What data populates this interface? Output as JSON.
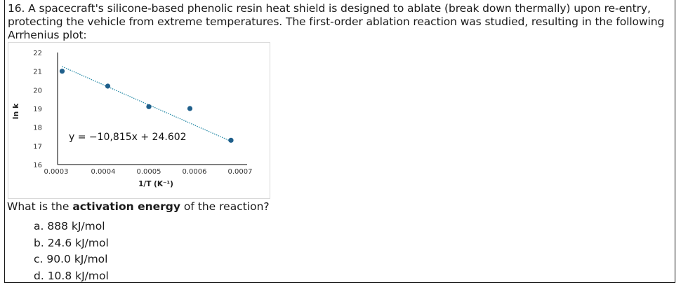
{
  "question": {
    "text": "16. A spacecraft's silicone-based phenolic resin heat shield is designed to ablate (break down thermally) upon re-entry, protecting the vehicle from extreme temperatures. The first-order ablation reaction was studied, resulting in the following Arrhenius plot:",
    "prompt_before": "What is the ",
    "prompt_bold": "activation energy",
    "prompt_after": " of the reaction?",
    "options": [
      {
        "label": "a. 888 kJ/mol"
      },
      {
        "label": "b. 24.6 kJ/mol"
      },
      {
        "label": "c. 90.0 kJ/mol"
      },
      {
        "label": "d. 10.8 kJ/mol"
      }
    ]
  },
  "chart_data": {
    "type": "scatter",
    "title": "",
    "xlabel": "1/T (K⁻¹)",
    "ylabel": "ln k",
    "xlim": [
      0.0003,
      0.0007
    ],
    "ylim": [
      16,
      22
    ],
    "x_ticks": [
      "0.0003",
      "0.0004",
      "0.0005",
      "0.0006",
      "0.0007"
    ],
    "y_ticks": [
      "16",
      "17",
      "18",
      "19",
      "20",
      "21",
      "22"
    ],
    "grid": false,
    "series": [
      {
        "color": "#1f5f8b",
        "points": [
          {
            "x": 0.00031,
            "y": 21.0
          },
          {
            "x": 0.00041,
            "y": 20.2
          },
          {
            "x": 0.0005,
            "y": 19.1
          },
          {
            "x": 0.00059,
            "y": 19.0
          },
          {
            "x": 0.00068,
            "y": 17.3
          }
        ]
      }
    ],
    "trendline": {
      "equation": "y = −10,815x + 24.602",
      "x_range": [
        0.00031,
        0.00068
      ],
      "slope": -10815,
      "intercept": 24.602,
      "style": "dotted",
      "color": "#2a8ca8"
    }
  }
}
